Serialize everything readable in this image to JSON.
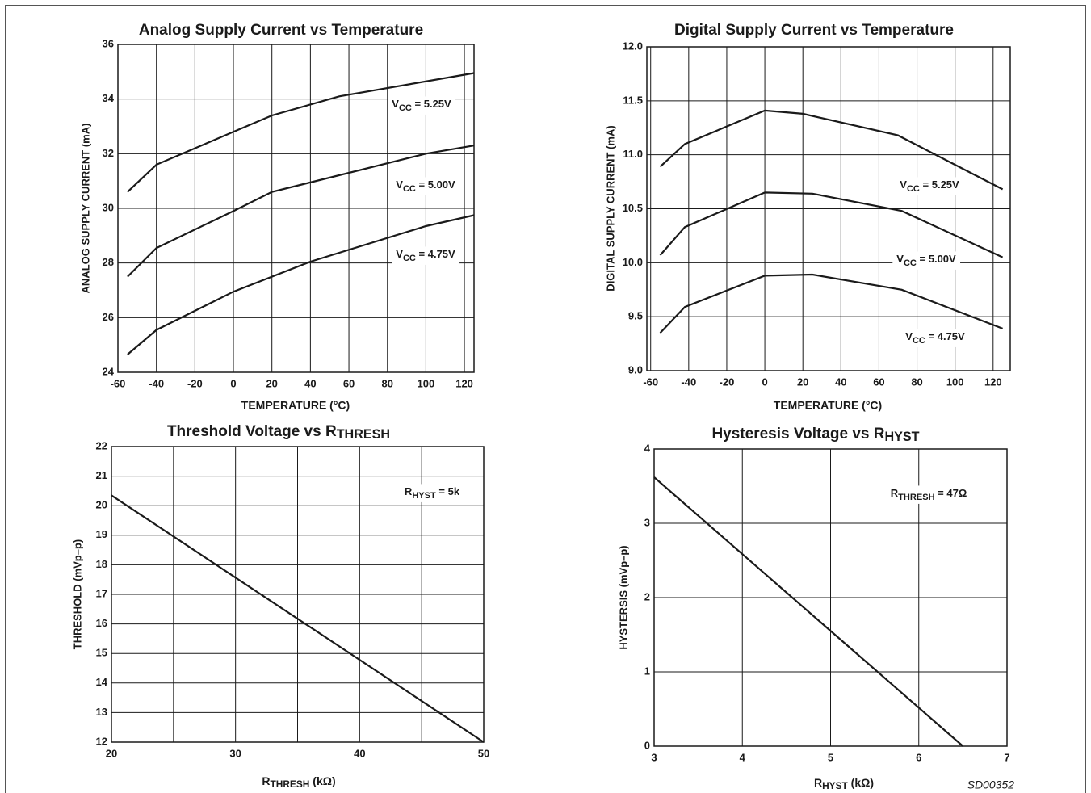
{
  "chart_data": [
    {
      "type": "line",
      "title": "Analog Supply Current vs Temperature",
      "x_label": "TEMPERATURE (°C)",
      "y_label": "ANALOG SUPPLY CURRENT (mA)",
      "xlim": [
        -60,
        125
      ],
      "xticks": [
        -60,
        -40,
        -20,
        0,
        20,
        40,
        60,
        80,
        100,
        120
      ],
      "ylim": [
        24,
        36
      ],
      "yticks": [
        24,
        26,
        28,
        30,
        32,
        34,
        36
      ],
      "grid": true,
      "series": [
        {
          "name": [
            "V",
            "CC",
            " = 5.25V"
          ],
          "color": "#1a1a1a",
          "x": [
            -55,
            -40,
            0,
            20,
            55,
            125
          ],
          "values": [
            30.6,
            31.6,
            32.8,
            33.4,
            34.1,
            34.95
          ]
        },
        {
          "name": [
            "V",
            "CC",
            " = 5.00V"
          ],
          "color": "#1a1a1a",
          "x": [
            -55,
            -40,
            0,
            20,
            100,
            125
          ],
          "values": [
            27.5,
            28.55,
            29.9,
            30.6,
            32.0,
            32.3
          ]
        },
        {
          "name": [
            "V",
            "CC",
            " = 4.75V"
          ],
          "color": "#1a1a1a",
          "x": [
            -55,
            -40,
            0,
            40,
            100,
            125
          ],
          "values": [
            24.65,
            25.55,
            26.95,
            28.05,
            29.35,
            29.75
          ]
        }
      ]
    },
    {
      "type": "line",
      "title": "Digital Supply Current vs Temperature",
      "x_label": "TEMPERATURE (°C)",
      "y_label": "DIGITAL SUPPLY CURRENT (mA)",
      "xlim": [
        -62,
        129
      ],
      "xticks": [
        -60,
        -40,
        -20,
        0,
        20,
        40,
        60,
        80,
        100,
        120
      ],
      "ylim": [
        9,
        12
      ],
      "yticks": [
        {
          "value": 9,
          "label": "9.0"
        },
        9.5,
        {
          "value": 10,
          "label": "10.0"
        },
        10.5,
        {
          "value": 11,
          "label": "11.0"
        },
        11.5,
        {
          "value": 12,
          "label": "12.0"
        }
      ],
      "grid": true,
      "series": [
        {
          "name": [
            "V",
            "CC",
            " = 5.25V"
          ],
          "color": "#1a1a1a",
          "x": [
            -55,
            -42,
            0,
            20,
            70,
            125
          ],
          "values": [
            10.89,
            11.1,
            11.41,
            11.38,
            11.18,
            10.68
          ]
        },
        {
          "name": [
            "V",
            "CC",
            " = 5.00V"
          ],
          "color": "#1a1a1a",
          "x": [
            -55,
            -42,
            0,
            25,
            72,
            125
          ],
          "values": [
            10.07,
            10.33,
            10.65,
            10.64,
            10.48,
            10.05
          ]
        },
        {
          "name": [
            "V",
            "CC",
            " = 4.75V"
          ],
          "color": "#1a1a1a",
          "x": [
            -55,
            -42,
            0,
            25,
            72,
            125
          ],
          "values": [
            9.35,
            9.59,
            9.88,
            9.89,
            9.75,
            9.39
          ]
        }
      ]
    },
    {
      "type": "line",
      "title": [
        "Threshold Voltage vs R",
        "THRESH"
      ],
      "x_label": [
        "R",
        "THRESH",
        " (kΩ)"
      ],
      "y_label": "THRESHOLD (mVp–p)",
      "xlim": [
        20,
        50
      ],
      "xticks": [
        20,
        30,
        40,
        50
      ],
      "xgrid": [
        25,
        35,
        45
      ],
      "ylim": [
        12,
        22
      ],
      "yticks": [
        12,
        13,
        14,
        15,
        16,
        17,
        18,
        19,
        20,
        21,
        22
      ],
      "grid": true,
      "annotation": [
        "R",
        "HYST",
        " = 5k"
      ],
      "series": [
        {
          "color": "#1a1a1a",
          "x": [
            20,
            50
          ],
          "values": [
            20.35,
            12
          ]
        }
      ]
    },
    {
      "type": "line",
      "title": [
        "Hysteresis Voltage vs R",
        "HYST"
      ],
      "x_label": [
        "R",
        "HYST",
        " (kΩ)"
      ],
      "y_label": "HYSTERSIS (mVp–p)",
      "xlim": [
        3,
        7
      ],
      "xticks": [
        3,
        4,
        5,
        6,
        7
      ],
      "ylim": [
        0,
        4
      ],
      "yticks": [
        0,
        1,
        2,
        3,
        4
      ],
      "grid": true,
      "annotation": [
        "R",
        "THRESH",
        " = 47Ω"
      ],
      "series": [
        {
          "color": "#1a1a1a",
          "x": [
            3,
            6.5
          ],
          "values": [
            3.62,
            0
          ]
        }
      ]
    }
  ],
  "footer": "SD00352"
}
